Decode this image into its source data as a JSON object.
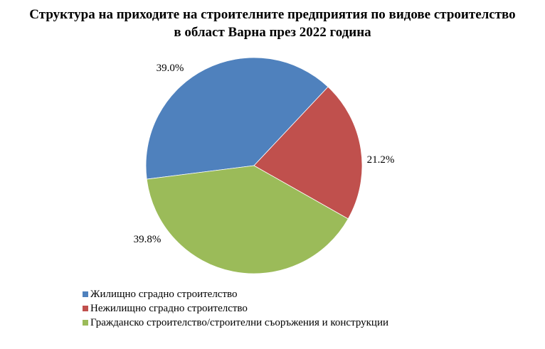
{
  "chart_data": {
    "type": "pie",
    "title": [
      "Структура на приходите на строителните предприятия по видове строителство",
      "в област Варна през 2022 година"
    ],
    "series": [
      {
        "name": "",
        "slices": [
          {
            "label": "Жилищно сградно строителство",
            "value": 39.0,
            "display": "39.0%",
            "color": "#4f81bd"
          },
          {
            "label": "Нежилищно сградно строителство",
            "value": 21.2,
            "display": "21.2%",
            "color": "#c0504d"
          },
          {
            "label": "Гражданско строителство/строителни съоръжения и конструкции",
            "value": 39.8,
            "display": "39.8%",
            "color": "#9bbb59"
          }
        ]
      }
    ],
    "legend_position": "bottom-left"
  }
}
